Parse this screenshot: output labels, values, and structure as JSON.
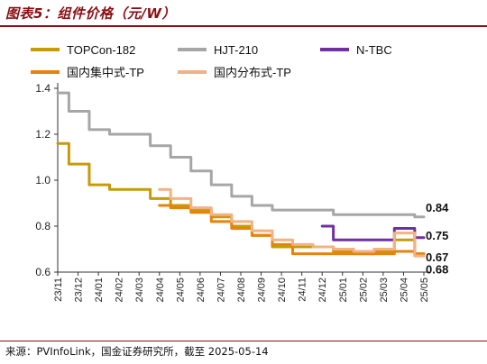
{
  "header": {
    "title": "图表5：组件价格（元/W）"
  },
  "footer": {
    "source": "来源：PVInfoLink，国金证券研究所，截至 2025-05-14"
  },
  "colors": {
    "brand": "#8a0f14",
    "topcon": "#c79a0a",
    "hjt": "#a6a6a6",
    "ntbc": "#7030a0",
    "central": "#e8820c",
    "distributed": "#f4b183"
  },
  "chart_data": {
    "type": "line",
    "title": "组件价格（元/W）",
    "xlabel": "",
    "ylabel": "",
    "ylim": [
      0.6,
      1.4
    ],
    "yticks": [
      "1.4",
      "1.2",
      "1.0",
      "0.8",
      "0.6"
    ],
    "x": [
      "23/11",
      "23/12",
      "24/01",
      "24/02",
      "24/03",
      "24/04",
      "24/05",
      "24/06",
      "24/07",
      "24/08",
      "24/09",
      "24/10",
      "24/11",
      "24/12",
      "25/01",
      "25/02",
      "25/03",
      "25/04",
      "25/05"
    ],
    "legend": {
      "position": "top",
      "columns": 3
    },
    "grid": false,
    "series": [
      {
        "name": "TOPCon-182",
        "color": "#c79a0a",
        "values": [
          1.16,
          1.07,
          0.98,
          0.96,
          0.96,
          0.92,
          0.89,
          0.87,
          0.84,
          0.8,
          0.76,
          0.71,
          0.71,
          0.71,
          0.69,
          0.68,
          0.69,
          0.74,
          0.68
        ],
        "end_label": ""
      },
      {
        "name": "HJT-210",
        "color": "#a6a6a6",
        "values": [
          1.38,
          1.3,
          1.22,
          1.2,
          1.2,
          1.15,
          1.1,
          1.04,
          0.98,
          0.93,
          0.89,
          0.87,
          0.87,
          0.87,
          0.85,
          0.85,
          0.85,
          0.85,
          0.84
        ],
        "end_label": "0.84"
      },
      {
        "name": "N-TBC",
        "color": "#7030a0",
        "values": [
          null,
          null,
          null,
          null,
          null,
          null,
          null,
          null,
          null,
          null,
          null,
          null,
          null,
          0.8,
          0.74,
          0.74,
          0.74,
          0.79,
          0.75
        ],
        "end_label": "0.75"
      },
      {
        "name": "国内集中式-TP",
        "color": "#e8820c",
        "values": [
          null,
          null,
          null,
          null,
          null,
          0.89,
          0.88,
          0.86,
          0.82,
          0.79,
          0.76,
          0.72,
          0.68,
          0.68,
          0.68,
          0.68,
          0.68,
          0.69,
          0.68
        ],
        "end_label": "0.68"
      },
      {
        "name": "国内分布式-TP",
        "color": "#f4b183",
        "values": [
          null,
          null,
          null,
          null,
          null,
          0.96,
          0.92,
          0.88,
          0.85,
          0.82,
          0.78,
          0.74,
          0.72,
          0.71,
          0.7,
          0.69,
          0.7,
          0.77,
          0.67
        ],
        "end_label": "0.67"
      }
    ]
  }
}
